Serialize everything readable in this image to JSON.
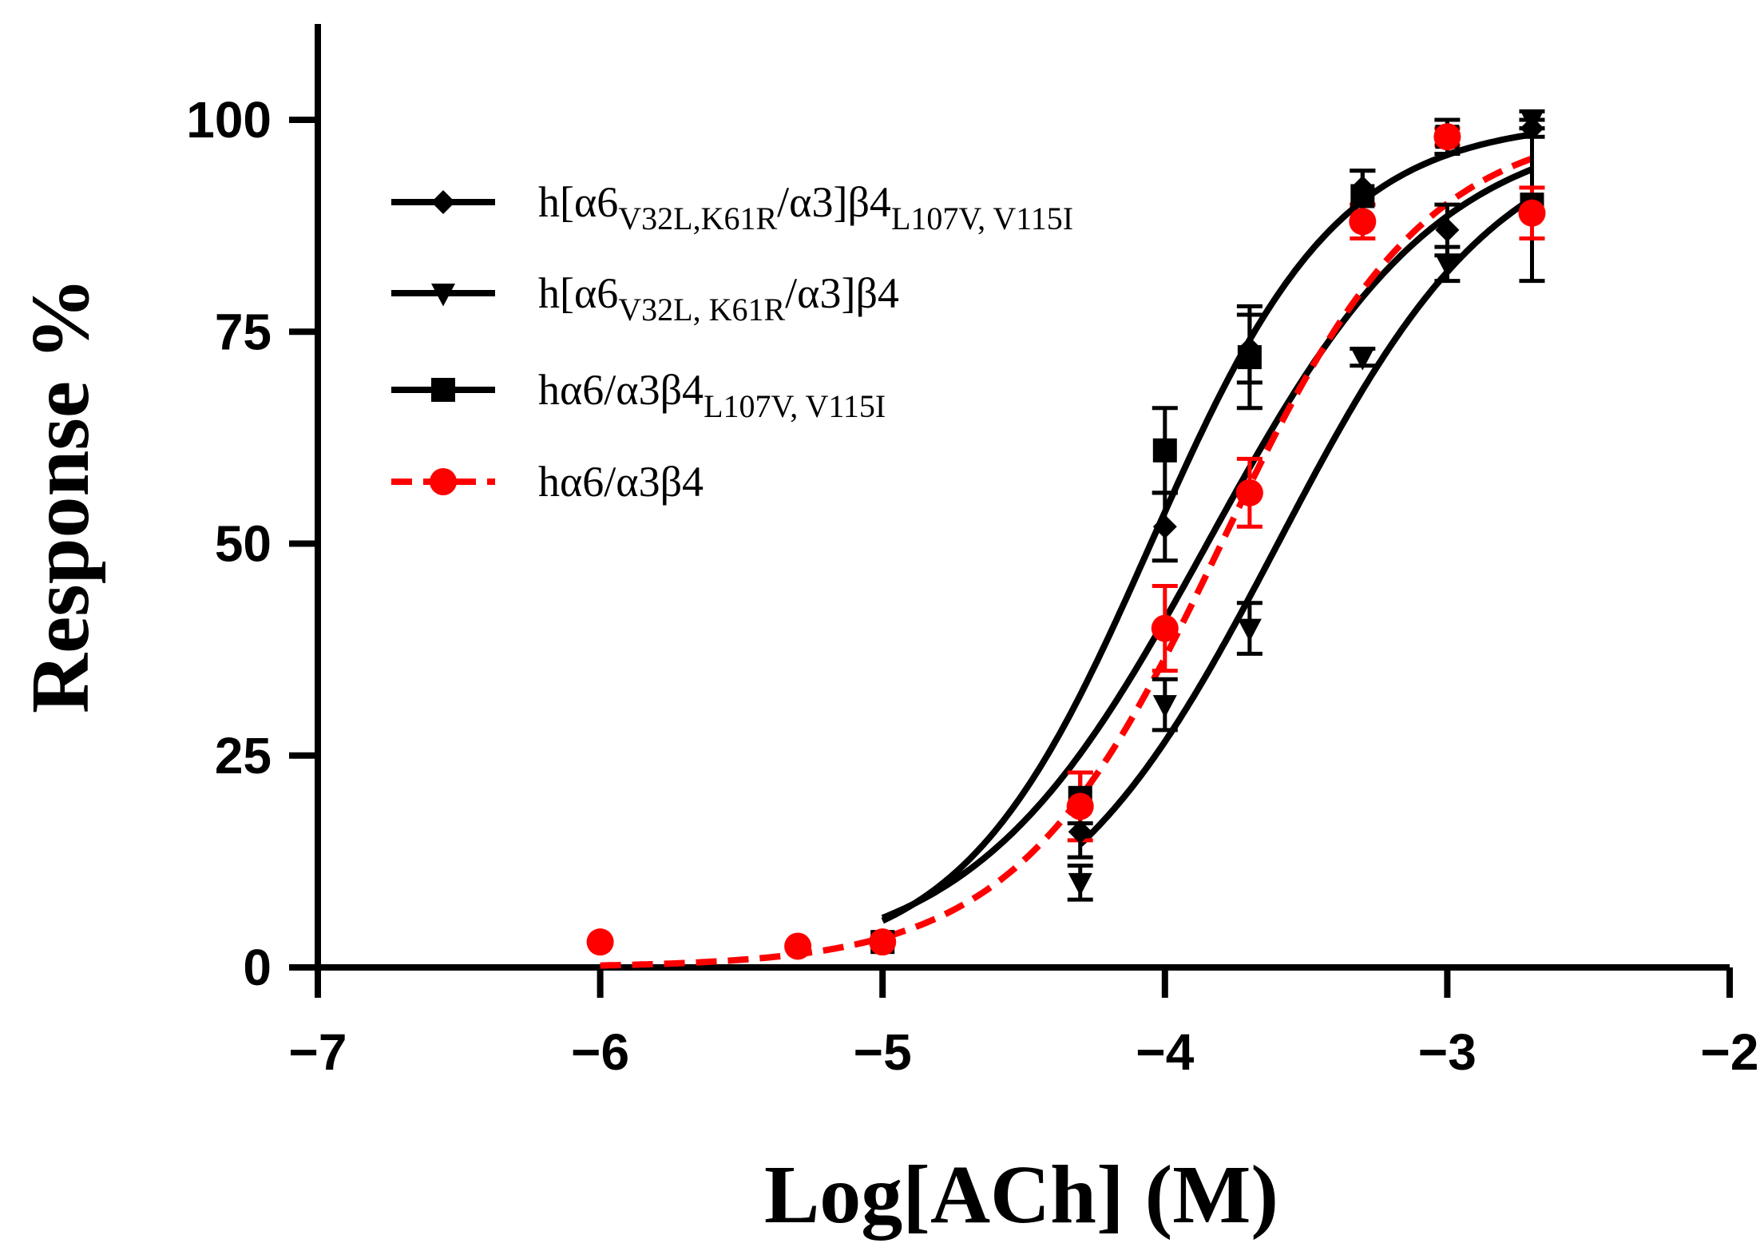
{
  "chart_data": {
    "type": "line",
    "title": "",
    "xlabel": "Log[ACh] (M)",
    "ylabel": "Response %",
    "xlim": [
      -7,
      -2
    ],
    "ylim": [
      0,
      110
    ],
    "xticks": [
      -7,
      -6,
      -5,
      -4,
      -3,
      -2
    ],
    "xtick_labels": [
      "−7",
      "−6",
      "−5",
      "−4",
      "−3",
      "−2"
    ],
    "yticks": [
      0,
      25,
      50,
      75,
      100
    ],
    "ytick_labels": [
      "0",
      "25",
      "50",
      "75",
      "100"
    ],
    "grid": false,
    "legend_position": "top-left",
    "series": [
      {
        "name": "h[α6V32L,K61R/α3]β4L107V, V115I",
        "legend_parts": [
          {
            "t": "h[α6",
            "sub": false
          },
          {
            "t": "V32L,K61R",
            "sub": true
          },
          {
            "t": "/α3]β4",
            "sub": false
          },
          {
            "t": "L107V, V115I",
            "sub": true
          }
        ],
        "marker": "diamond",
        "color": "#000000",
        "dashed": false,
        "x": [
          -5,
          -4.3,
          -4,
          -3.7,
          -3.3,
          -3,
          -2.7
        ],
        "y": [
          3,
          16,
          52,
          73,
          92,
          87,
          99
        ],
        "err": [
          0,
          3,
          4,
          4,
          2,
          3,
          1
        ],
        "fit": {
          "bottom": 0,
          "top": 100,
          "log_ec50": -4.05,
          "hill": 1.3
        }
      },
      {
        "name": "h[α6V32L,  K61R/α3]β4",
        "legend_parts": [
          {
            "t": "h[α6",
            "sub": false
          },
          {
            "t": "V32L,  K61R",
            "sub": true
          },
          {
            "t": "/α3]β4",
            "sub": false
          }
        ],
        "marker": "triangle-down",
        "color": "#000000",
        "dashed": false,
        "x": [
          -4.3,
          -4,
          -3.7,
          -3.3,
          -3,
          -2.7
        ],
        "y": [
          10,
          31,
          40,
          72,
          83,
          100
        ],
        "err": [
          2,
          3,
          3,
          1,
          2,
          1
        ],
        "fit": {
          "bottom": 0,
          "top": 100,
          "log_ec50": -3.6,
          "hill": 1.1
        }
      },
      {
        "name": "hα6/α3β4L107V,  V115I",
        "legend_parts": [
          {
            "t": "hα6/α3β4",
            "sub": false
          },
          {
            "t": "L107V,  V115I",
            "sub": true
          }
        ],
        "marker": "square",
        "color": "#000000",
        "dashed": false,
        "x": [
          -5,
          -4.3,
          -4,
          -3.7,
          -3.3,
          -3,
          -2.7
        ],
        "y": [
          3,
          20,
          61,
          72,
          91,
          98,
          90
        ],
        "err": [
          0,
          3,
          5,
          6,
          3,
          2,
          9
        ],
        "fit": {
          "bottom": 0,
          "top": 100,
          "log_ec50": -3.85,
          "hill": 1.05
        }
      },
      {
        "name": "hα6/α3β4",
        "legend_parts": [
          {
            "t": "hα6/α3β4",
            "sub": false
          }
        ],
        "marker": "circle",
        "color": "#ff0000",
        "dashed": true,
        "x": [
          -6,
          -5.3,
          -5,
          -4.3,
          -4,
          -3.7,
          -3.3,
          -3,
          -2.7
        ],
        "y": [
          3,
          2.5,
          3,
          19,
          40,
          56,
          88,
          98,
          89
        ],
        "err": [
          0,
          0,
          0,
          4,
          5,
          4,
          2,
          1,
          3
        ],
        "fit": {
          "bottom": 0,
          "top": 100,
          "log_ec50": -3.8,
          "hill": 1.2
        }
      }
    ]
  }
}
